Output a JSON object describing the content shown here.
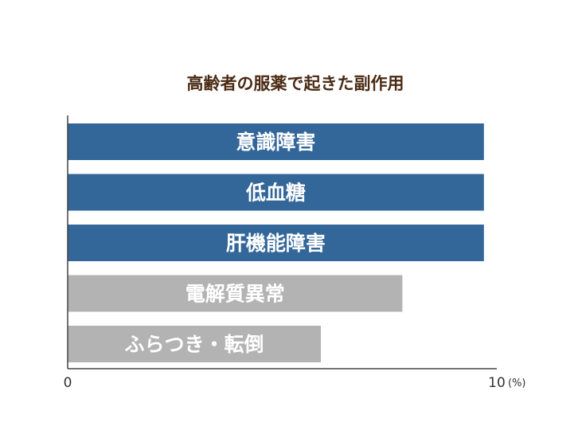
{
  "chart_data": {
    "type": "bar",
    "orientation": "horizontal",
    "title": "高齢者の服薬で起きた副作用",
    "categories": [
      "意識障害",
      "低血糖",
      "肝機能障害",
      "電解質異常",
      "ふらつき・転倒"
    ],
    "values": [
      9.7,
      9.7,
      9.7,
      7.8,
      5.9
    ],
    "xlim": [
      0,
      10
    ],
    "x_ticks": [
      "0",
      "10"
    ],
    "x_unit": "(%)",
    "grid": false,
    "legend": "none",
    "colors": {
      "title": "#4a2a12",
      "highlight_bar": "#336699",
      "normal_bar": "#b3b3b3",
      "axis": "#444444"
    },
    "highlighted": [
      true,
      true,
      true,
      false,
      false
    ]
  }
}
